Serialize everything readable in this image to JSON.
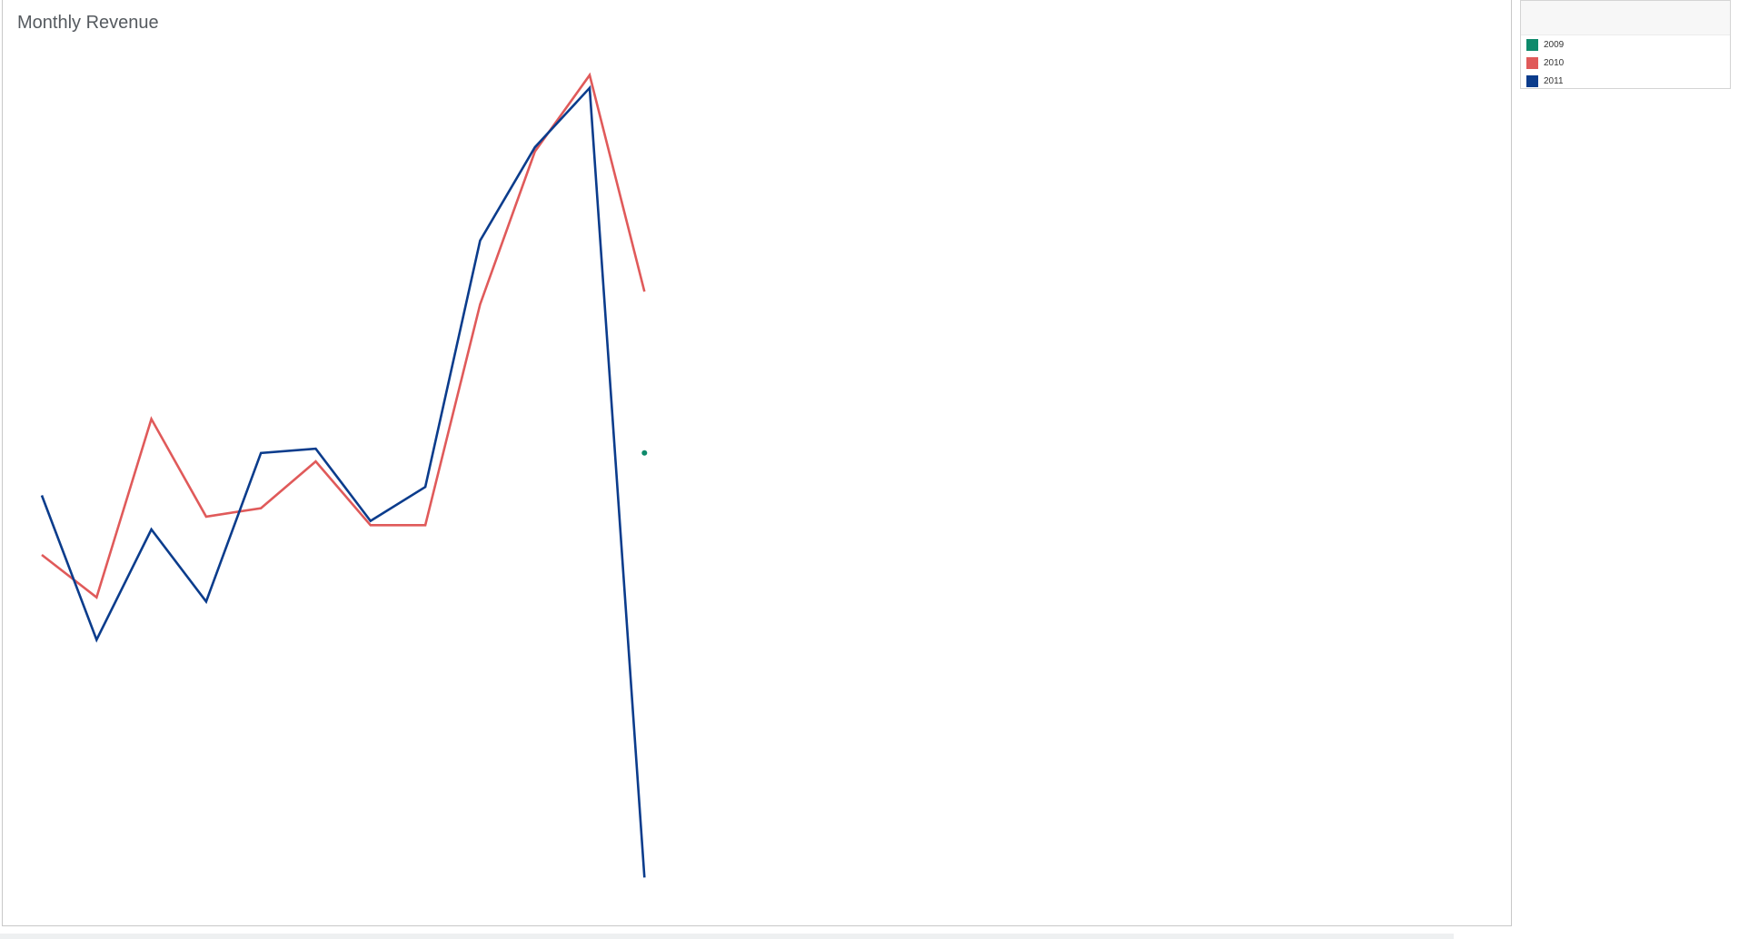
{
  "title": "Monthly Revenue",
  "legend": [
    {
      "label": "2009",
      "color": "#0e8a6b"
    },
    {
      "label": "2010",
      "color": "#e05a5a"
    },
    {
      "label": "2011",
      "color": "#0b3c8c"
    }
  ],
  "chart_data": {
    "type": "line",
    "title": "Monthly Revenue",
    "xlabel": "",
    "ylabel": "",
    "x": [
      1,
      2,
      3,
      4,
      5,
      6,
      7,
      8,
      9,
      10,
      11,
      12
    ],
    "ylim": [
      0,
      100
    ],
    "grid": false,
    "legend_position": "top-right",
    "series": [
      {
        "name": "2009",
        "color": "#0e8a6b",
        "values": [
          null,
          null,
          null,
          null,
          null,
          null,
          null,
          null,
          null,
          null,
          null,
          52
        ]
      },
      {
        "name": "2010",
        "color": "#e05a5a",
        "values": [
          40,
          35,
          56,
          44.5,
          45.5,
          51,
          43.5,
          43.5,
          69.5,
          87.5,
          96.5,
          71
        ]
      },
      {
        "name": "2011",
        "color": "#0b3c8c",
        "values": [
          47,
          30,
          43,
          34.5,
          52,
          52.5,
          44,
          48,
          77,
          88,
          95,
          2
        ]
      }
    ]
  }
}
